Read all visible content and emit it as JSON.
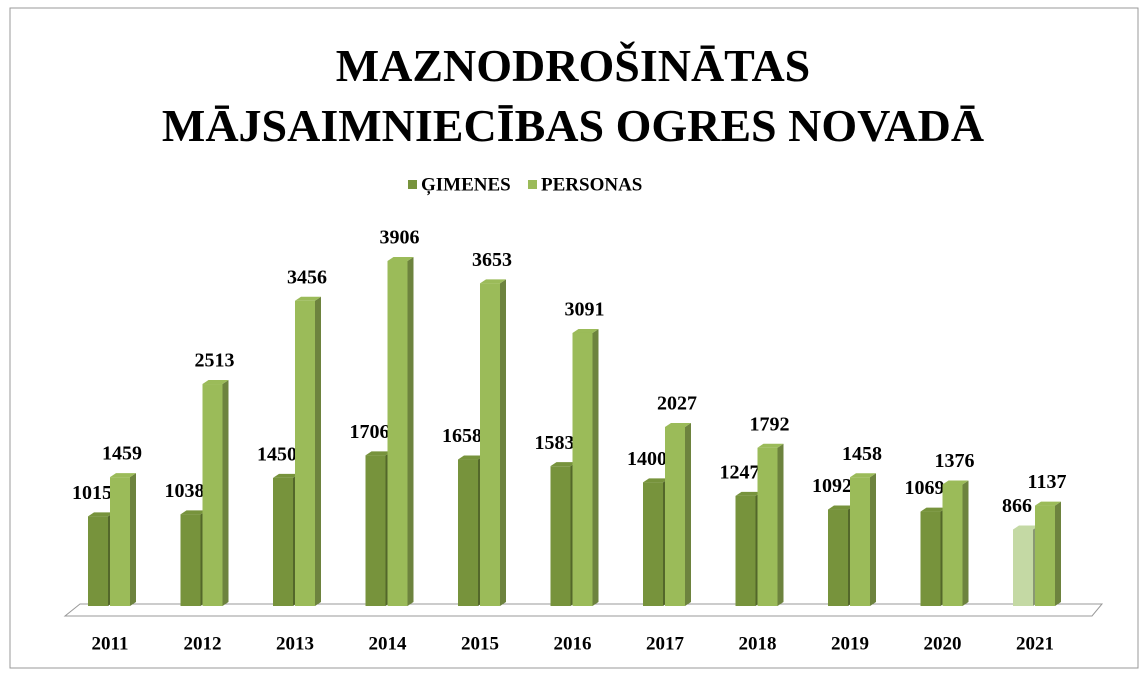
{
  "chart_data": {
    "type": "bar3d",
    "title": "MAZNODROŠINĀTAS MĀJSAIMNIECĪBAS OGRES NOVADĀ",
    "categories": [
      "2011",
      "2012",
      "2013",
      "2014",
      "2015",
      "2016",
      "2017",
      "2018",
      "2019",
      "2020",
      "2021"
    ],
    "legend": "top",
    "series": [
      {
        "name": "ĢIMENES",
        "color": "#77933c",
        "colors": [
          "#77933c",
          "#77933c",
          "#77933c",
          "#77933c",
          "#77933c",
          "#77933c",
          "#77933c",
          "#77933c",
          "#77933c",
          "#77933c",
          "#c4d9a4"
        ],
        "values": [
          1015,
          1038,
          1450,
          1706,
          1658,
          1583,
          1400,
          1247,
          1092,
          1069,
          866
        ]
      },
      {
        "name": "PERSONAS",
        "color": "#9bbb59",
        "values": [
          1459,
          2513,
          3456,
          3906,
          3653,
          3091,
          2027,
          1792,
          1458,
          1376,
          1137
        ]
      }
    ]
  }
}
